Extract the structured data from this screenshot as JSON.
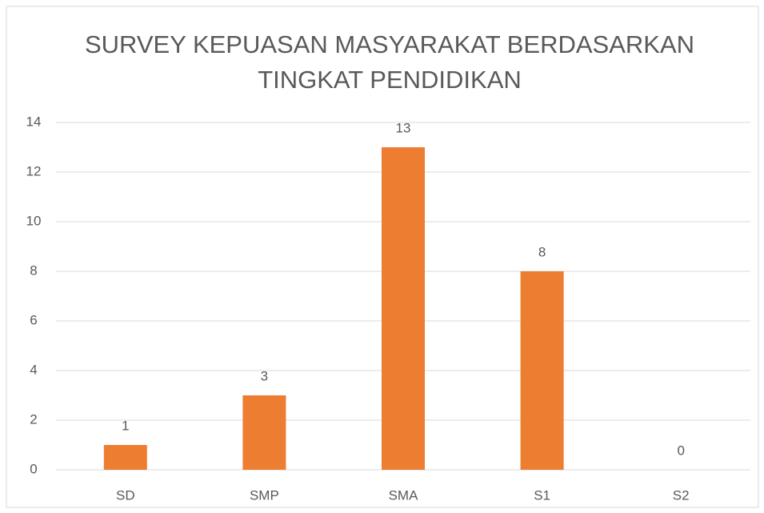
{
  "chart_data": {
    "type": "bar",
    "title": [
      "SURVEY KEPUASAN MASYARAKAT BERDASARKAN",
      "TINGKAT PENDIDIKAN"
    ],
    "categories": [
      "SD",
      "SMP",
      "SMA",
      "S1",
      "S2"
    ],
    "values": [
      1,
      3,
      13,
      8,
      0
    ],
    "color": "#ed7d31",
    "ylim": [
      0,
      14
    ],
    "yticks": [
      0,
      2,
      4,
      6,
      8,
      10,
      12,
      14
    ],
    "grid": true
  }
}
